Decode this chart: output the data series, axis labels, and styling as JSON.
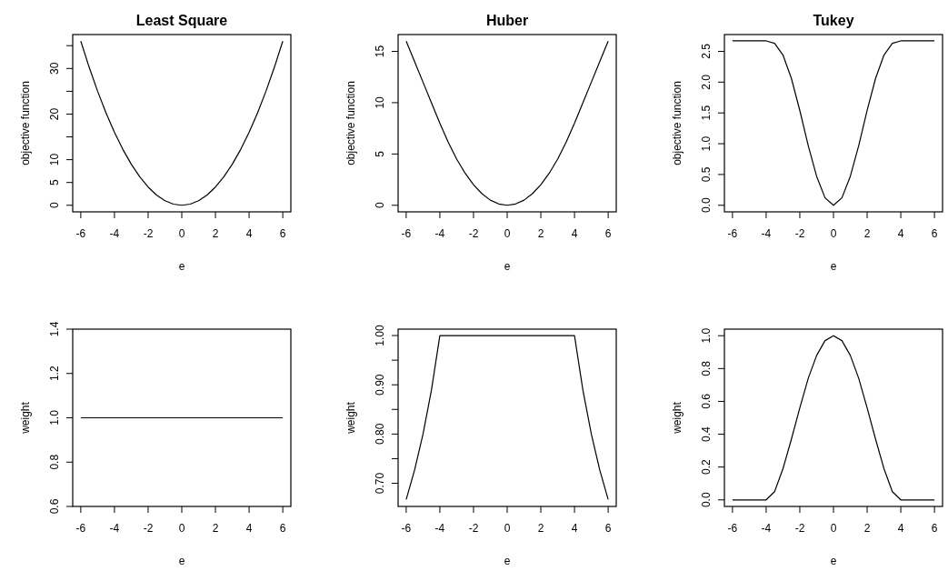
{
  "chart_data": [
    {
      "type": "line",
      "title": "Least Square",
      "xlabel": "e",
      "ylabel": "objective function",
      "xlim": [
        -6.48,
        6.48
      ],
      "ylim": [
        -1.44,
        37.44
      ],
      "xticks": [
        -6,
        -4,
        -2,
        0,
        2,
        4,
        6
      ],
      "yticks": [
        0,
        5,
        10,
        {
          "value": 15,
          "label": null
        },
        20,
        {
          "value": 25,
          "label": null
        },
        30,
        {
          "value": 35,
          "label": null
        }
      ],
      "x": [
        -6,
        -5.5,
        -5,
        -4.5,
        -4,
        -3.5,
        -3,
        -2.5,
        -2,
        -1.5,
        -1,
        -0.5,
        0,
        0.5,
        1,
        1.5,
        2,
        2.5,
        3,
        3.5,
        4,
        4.5,
        5,
        5.5,
        6
      ],
      "series": [
        {
          "color": "#000000",
          "values": [
            36,
            30.25,
            25,
            20.25,
            16,
            12.25,
            9,
            6.25,
            4,
            2.25,
            1,
            0.25,
            0,
            0.25,
            1,
            2.25,
            4,
            6.25,
            9,
            12.25,
            16,
            20.25,
            25,
            30.25,
            36
          ]
        }
      ]
    },
    {
      "type": "line",
      "title": "Huber",
      "xlabel": "e",
      "ylabel": "objective function",
      "xlim": [
        -6.48,
        6.48
      ],
      "ylim": [
        -0.64,
        16.64
      ],
      "xticks": [
        -6,
        -4,
        -2,
        0,
        2,
        4,
        6
      ],
      "yticks": [
        0,
        5,
        10,
        15
      ],
      "x": [
        -6,
        -5.5,
        -5,
        -4.5,
        -4,
        -3.5,
        -3,
        -2.5,
        -2,
        -1.5,
        -1,
        -0.5,
        0,
        0.5,
        1,
        1.5,
        2,
        2.5,
        3,
        3.5,
        4,
        4.5,
        5,
        5.5,
        6
      ],
      "series": [
        {
          "color": "#000000",
          "values": [
            16,
            14,
            12,
            10,
            8,
            6.13,
            4.5,
            3.13,
            2,
            1.13,
            0.5,
            0.13,
            0,
            0.13,
            0.5,
            1.13,
            2,
            3.13,
            4.5,
            6.13,
            8,
            10,
            12,
            14,
            16
          ]
        }
      ]
    },
    {
      "type": "line",
      "title": "Tukey",
      "xlabel": "e",
      "ylabel": "objective function",
      "xlim": [
        -6.48,
        6.48
      ],
      "ylim": [
        -0.107,
        2.773
      ],
      "xticks": [
        -6,
        -4,
        -2,
        0,
        2,
        4,
        6
      ],
      "yticks": [
        {
          "value": 0,
          "label": "0.0"
        },
        0.5,
        {
          "value": 1,
          "label": "1.0"
        },
        1.5,
        {
          "value": 2,
          "label": "2.0"
        },
        2.5
      ],
      "x": [
        -6,
        -5.5,
        -5,
        -4.5,
        -4,
        -3.5,
        -3,
        -2.5,
        -2,
        -1.5,
        -1,
        -0.5,
        0,
        0.5,
        1,
        1.5,
        2,
        2.5,
        3,
        3.5,
        4,
        4.5,
        5,
        5.5,
        6
      ],
      "series": [
        {
          "color": "#000000",
          "values": [
            2.67,
            2.67,
            2.67,
            2.67,
            2.67,
            2.63,
            2.44,
            2.06,
            1.54,
            0.97,
            0.47,
            0.12,
            0,
            0.12,
            0.47,
            0.97,
            1.54,
            2.06,
            2.44,
            2.63,
            2.67,
            2.67,
            2.67,
            2.67,
            2.67
          ]
        }
      ]
    },
    {
      "type": "line",
      "xlabel": "e",
      "ylabel": "weight",
      "xlim": [
        -6.48,
        6.48
      ],
      "ylim": [
        0.6,
        1.4
      ],
      "xticks": [
        -6,
        -4,
        -2,
        0,
        2,
        4,
        6
      ],
      "yticks": [
        0.6,
        0.8,
        {
          "value": 1,
          "label": "1.0"
        },
        1.2,
        1.4
      ],
      "x": [
        -6,
        6
      ],
      "series": [
        {
          "color": "#000000",
          "values": [
            1,
            1
          ]
        }
      ]
    },
    {
      "type": "line",
      "xlabel": "e",
      "ylabel": "weight",
      "xlim": [
        -6.48,
        6.48
      ],
      "ylim": [
        0.653,
        1.013
      ],
      "xticks": [
        -6,
        -4,
        -2,
        0,
        2,
        4,
        6
      ],
      "yticks": [
        {
          "value": 0.7,
          "label": "0.70"
        },
        {
          "value": 0.75,
          "label": null
        },
        {
          "value": 0.8,
          "label": "0.80"
        },
        {
          "value": 0.85,
          "label": null
        },
        {
          "value": 0.9,
          "label": "0.90"
        },
        {
          "value": 0.95,
          "label": null
        },
        {
          "value": 1,
          "label": "1.00"
        }
      ],
      "x": [
        -6,
        -5.5,
        -5,
        -4.5,
        -4,
        0,
        4,
        4.5,
        5,
        5.5,
        6
      ],
      "series": [
        {
          "color": "#000000",
          "values": [
            0.667,
            0.727,
            0.8,
            0.889,
            1,
            1,
            1,
            0.889,
            0.8,
            0.727,
            0.667
          ]
        }
      ]
    },
    {
      "type": "line",
      "xlabel": "e",
      "ylabel": "weight",
      "xlim": [
        -6.48,
        6.48
      ],
      "ylim": [
        -0.04,
        1.04
      ],
      "xticks": [
        -6,
        -4,
        -2,
        0,
        2,
        4,
        6
      ],
      "yticks": [
        {
          "value": 0,
          "label": "0.0"
        },
        0.2,
        0.4,
        0.6,
        0.8,
        {
          "value": 1,
          "label": "1.0"
        }
      ],
      "x": [
        -6,
        -5.5,
        -5,
        -4.5,
        -4,
        -3.5,
        -3,
        -2.5,
        -2,
        -1.5,
        -1,
        -0.5,
        0,
        0.5,
        1,
        1.5,
        2,
        2.5,
        3,
        3.5,
        4,
        4.5,
        5,
        5.5,
        6
      ],
      "series": [
        {
          "color": "#000000",
          "values": [
            0,
            0,
            0,
            0,
            0,
            0.05,
            0.19,
            0.37,
            0.56,
            0.74,
            0.88,
            0.97,
            1,
            0.97,
            0.88,
            0.74,
            0.56,
            0.37,
            0.19,
            0.05,
            0,
            0,
            0,
            0,
            0
          ]
        }
      ]
    }
  ]
}
